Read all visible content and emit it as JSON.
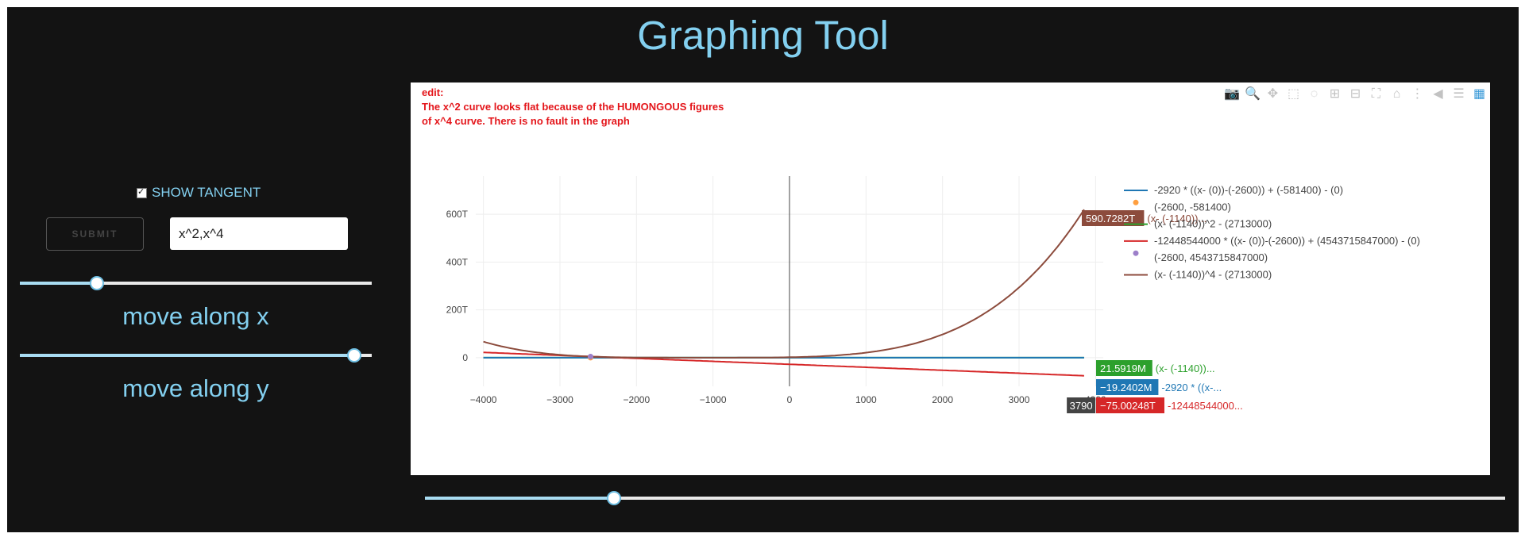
{
  "page": {
    "title": "Graphing Tool"
  },
  "controls": {
    "show_tangent_label": "SHOW TANGENT",
    "show_tangent_checked": true,
    "submit_label": "SUBMIT",
    "function_input_value": "x^2,x^4",
    "move_x_label": "move along x",
    "move_y_label": "move along y",
    "move_x_position": 0.22,
    "move_y_position": 0.95,
    "bottom_slider_position": 0.175
  },
  "plot": {
    "note_line1": "edit:",
    "note_line2": "The x^2 curve looks flat because of the HUMONGOUS figures",
    "note_line3": "of x^4 curve. There is no fault in the graph",
    "modebar_icons": [
      "camera-icon",
      "zoom-icon",
      "pan-icon",
      "box-select-icon",
      "lasso-icon",
      "zoom-in-icon",
      "zoom-out-icon",
      "autoscale-icon",
      "reset-axes-icon",
      "spike-lines-icon",
      "hover-closest-icon",
      "hover-compare-icon",
      "plotly-logo-icon"
    ],
    "hover_x_label": "3790",
    "hover_labels": [
      {
        "value": "590.7282T",
        "text": "(x- (-1140))...",
        "color": "#8c4b3c"
      },
      {
        "value": "21.5919M",
        "text": "(x- (-1140))...",
        "color": "#2ca02c"
      },
      {
        "value": "−19.2402M",
        "text": "-2920 * ((x-...",
        "color": "#1f77b4"
      },
      {
        "value": "−75.00248T",
        "text": "-12448544000...",
        "color": "#d62728"
      }
    ],
    "legend": [
      {
        "text": "-2920 * ((x- (0))-(-2600)) + (-581400) - (0)",
        "color": "#1f77b4",
        "kind": "line"
      },
      {
        "text": "(-2600, -581400)",
        "color": "#ff9f3f",
        "kind": "dot"
      },
      {
        "text": "(x- (-1140))^2 - (2713000)",
        "color": "#2ca02c",
        "kind": "line"
      },
      {
        "text": "-12448544000 * ((x- (0))-(-2600)) + (4543715847000) - (0)",
        "color": "#d62728",
        "kind": "line"
      },
      {
        "text": "(-2600, 4543715847000)",
        "color": "#9c7fc9",
        "kind": "dot"
      },
      {
        "text": "(x- (-1140))^4 - (2713000)",
        "color": "#8c4b3c",
        "kind": "line"
      }
    ]
  },
  "chart_data": {
    "type": "line",
    "xlabel": "",
    "ylabel": "",
    "xlim": [
      -4100,
      4100
    ],
    "ylim": [
      -120000000000000,
      760000000000000
    ],
    "x_ticks": [
      -4000,
      -3000,
      -2000,
      -1000,
      0,
      1000,
      2000,
      3000,
      4000
    ],
    "x_tick_labels": [
      "−4000",
      "−3000",
      "−2000",
      "−1000",
      "0",
      "1000",
      "2000",
      "3000",
      "4000"
    ],
    "y_ticks": [
      0,
      200000000000000,
      400000000000000,
      600000000000000
    ],
    "y_tick_labels": [
      "0",
      "200T",
      "400T",
      "600T"
    ],
    "grid": true,
    "legend_position": "right",
    "series": [
      {
        "name": "-2920 * ((x- (0))-(-2600)) + (-581400) - (0)",
        "type": "line",
        "color": "#1f77b4",
        "formula": "-2920*(x+2600)-581400"
      },
      {
        "name": "(-2600, -581400)",
        "type": "point",
        "color": "#ff9f3f",
        "x": [
          -2600
        ],
        "y": [
          -581400
        ]
      },
      {
        "name": "(x- (-1140))^2 - (2713000)",
        "type": "line",
        "color": "#2ca02c",
        "formula": "(x+1140)^2-2713000"
      },
      {
        "name": "-12448544000 * ((x- (0))-(-2600)) + (4543715847000) - (0)",
        "type": "line",
        "color": "#d62728",
        "formula": "-12448544000*(x+2600)+4543715847000"
      },
      {
        "name": "(-2600, 4543715847000)",
        "type": "point",
        "color": "#9c7fc9",
        "x": [
          -2600
        ],
        "y": [
          4543715847000
        ]
      },
      {
        "name": "(x- (-1140))^4 - (2713000)",
        "type": "line",
        "color": "#8c4b3c",
        "formula": "(x+1140)^4-2713000"
      }
    ],
    "x_range_drawn": [
      -4000,
      3850
    ]
  }
}
